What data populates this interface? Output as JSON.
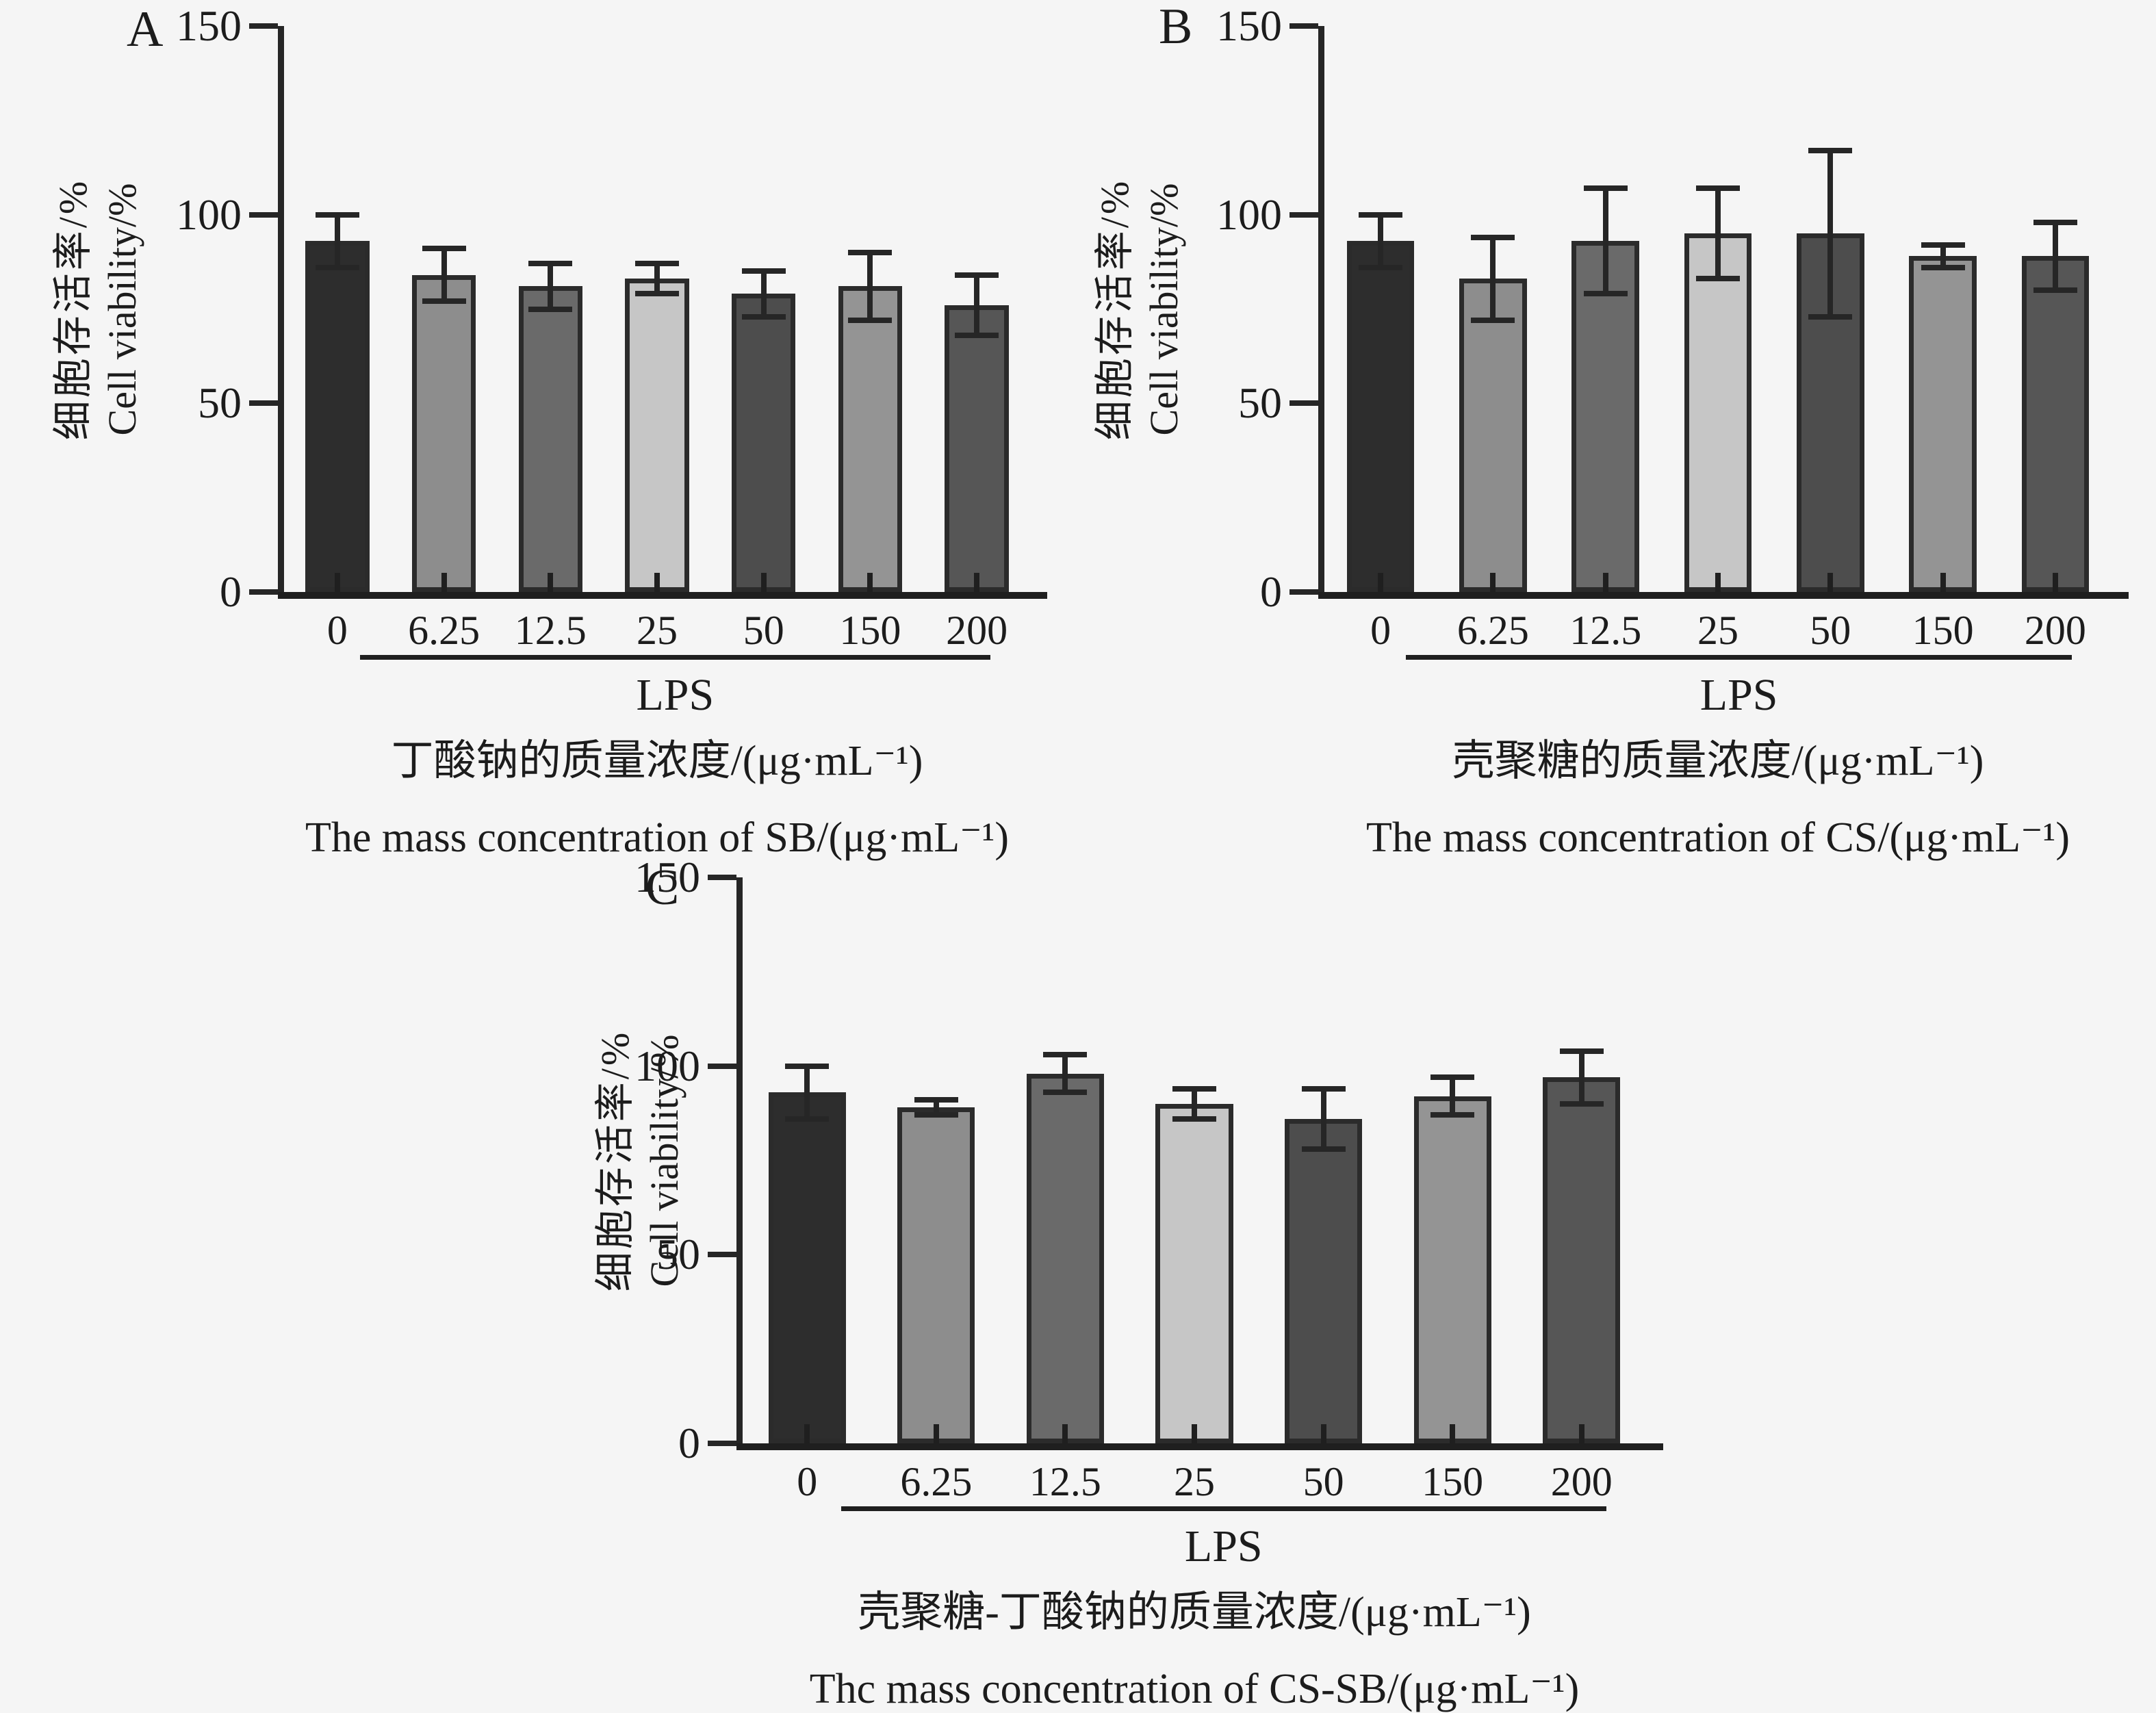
{
  "background": "#f5f5f5",
  "bar_border_color": "#2b2b2b",
  "error_bar_color": "#262626",
  "bar_colors": [
    "#2d2d2d",
    "#8d8d8d",
    "#6a6a6a",
    "#c6c6c6",
    "#4d4d4d",
    "#949494",
    "#565656"
  ],
  "chart_data": [
    {
      "type": "bar",
      "panel_letter": "A",
      "ylabel_zh": "细胞存活率/%",
      "ylabel_en": "Cell viability/%",
      "categories": [
        "0",
        "6.25",
        "12.5",
        "25",
        "50",
        "150",
        "200"
      ],
      "values": [
        93,
        84,
        81,
        83,
        79,
        81,
        76
      ],
      "errors": [
        7,
        7,
        6,
        4,
        6,
        9,
        8
      ],
      "ylim": [
        0,
        150
      ],
      "yticks": [
        "0",
        "50",
        "100",
        "150"
      ],
      "grid": "off",
      "group_line_label": "LPS",
      "xlabel_zh": "丁酸钠的质量浓度/(μg·mL⁻¹)",
      "xlabel_en": "The mass concentration of SB/(μg·mL⁻¹)"
    },
    {
      "type": "bar",
      "panel_letter": "B",
      "ylabel_zh": "细胞存活率/%",
      "ylabel_en": "Cell viability/%",
      "categories": [
        "0",
        "6.25",
        "12.5",
        "25",
        "50",
        "150",
        "200"
      ],
      "values": [
        93,
        83,
        93,
        95,
        95,
        89,
        89
      ],
      "errors": [
        7,
        11,
        14,
        12,
        22,
        3,
        9
      ],
      "ylim": [
        0,
        150
      ],
      "yticks": [
        "0",
        "50",
        "100",
        "150"
      ],
      "grid": "off",
      "group_line_label": "LPS",
      "xlabel_zh": "壳聚糖的质量浓度/(μg·mL⁻¹)",
      "xlabel_en": "The mass concentration of CS/(μg·mL⁻¹)"
    },
    {
      "type": "bar",
      "panel_letter": "C",
      "ylabel_zh": "细胞存活率/%",
      "ylabel_en": "Cell viability/%",
      "categories": [
        "0",
        "6.25",
        "12.5",
        "25",
        "50",
        "150",
        "200"
      ],
      "values": [
        93,
        89,
        98,
        90,
        86,
        92,
        97
      ],
      "errors": [
        7,
        2,
        5,
        4,
        8,
        5,
        7
      ],
      "ylim": [
        0,
        150
      ],
      "yticks": [
        "0",
        "50",
        "100",
        "150"
      ],
      "grid": "off",
      "group_line_label": "LPS",
      "xlabel_zh": "壳聚糖-丁酸钠的质量浓度/(μg·mL⁻¹)",
      "xlabel_en": "Thc mass concentration of CS-SB/(μg·mL⁻¹)"
    }
  ]
}
